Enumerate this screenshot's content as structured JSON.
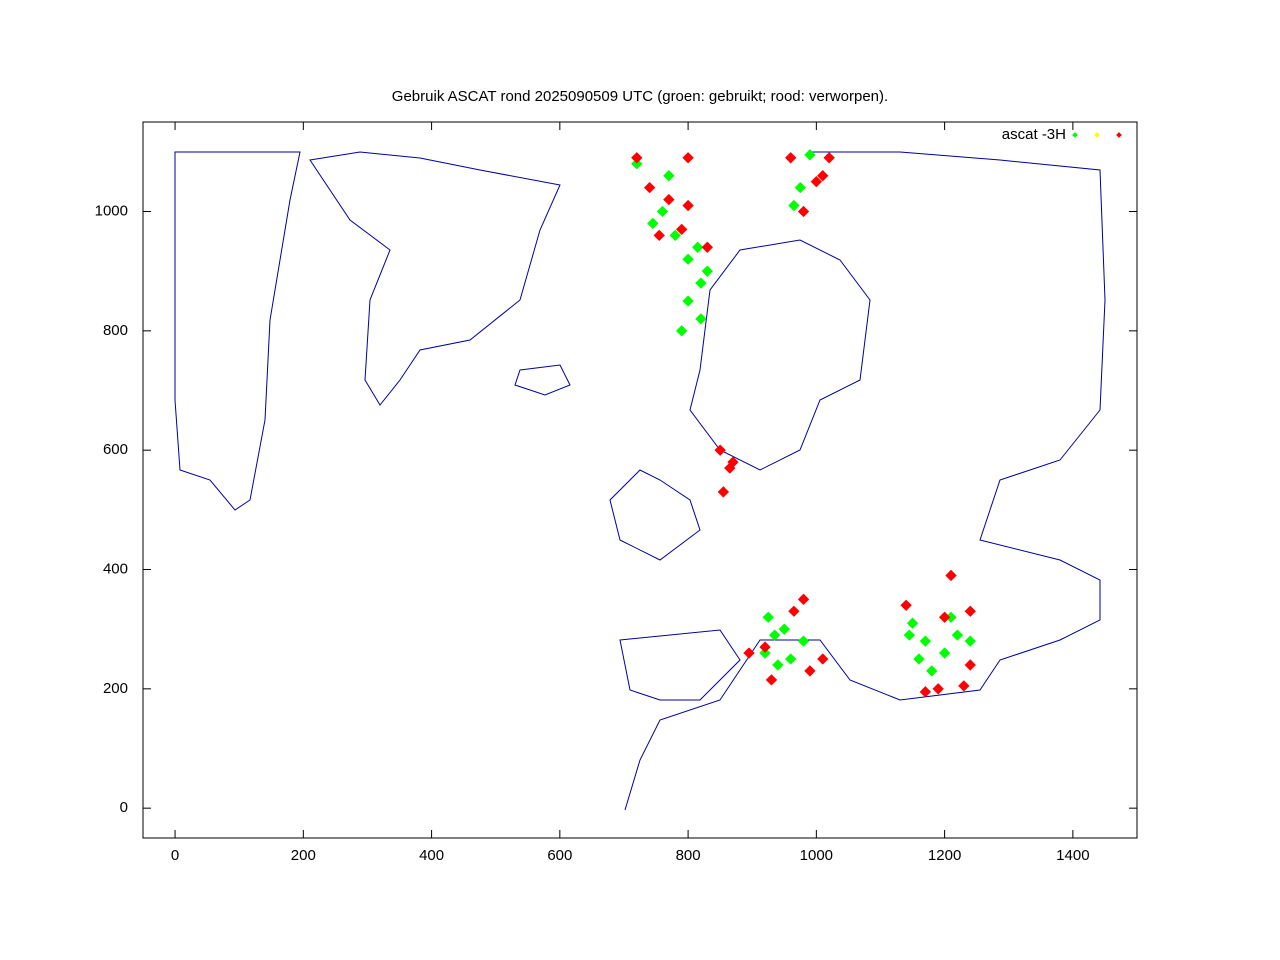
{
  "chart_data": {
    "type": "scatter",
    "title": "Gebruik ASCAT rond 2025090509 UTC (groen: gebruikt; rood: verworpen).",
    "legend_label": "ascat -3H",
    "xlim": [
      -50,
      1500
    ],
    "ylim": [
      -50,
      1150
    ],
    "xticks": [
      0,
      200,
      400,
      600,
      800,
      1000,
      1200,
      1400
    ],
    "yticks": [
      0,
      200,
      400,
      600,
      800,
      1000
    ],
    "series": [
      {
        "color": "#00ff00",
        "x": [
          760,
          780,
          800,
          820,
          800,
          790,
          820,
          830,
          770,
          720,
          745,
          815,
          990,
          975,
          965,
          920,
          940,
          935,
          960,
          980,
          950,
          925,
          1150,
          1170,
          1200,
          1220,
          1180,
          1160,
          1240,
          1210,
          1145
        ],
        "y": [
          1000,
          960,
          920,
          880,
          850,
          800,
          820,
          900,
          1060,
          1080,
          980,
          940,
          1095,
          1040,
          1010,
          260,
          240,
          290,
          250,
          280,
          300,
          320,
          310,
          280,
          260,
          290,
          230,
          250,
          280,
          320,
          290
        ]
      },
      {
        "color": "#ffff00",
        "x": [],
        "y": []
      },
      {
        "color": "#ff0000",
        "x": [
          740,
          770,
          800,
          790,
          755,
          830,
          720,
          800,
          960,
          1020,
          1000,
          980,
          1010,
          930,
          990,
          1010,
          965,
          980,
          920,
          895,
          1140,
          1200,
          1240,
          1190,
          1230,
          1170,
          855,
          865,
          850,
          870,
          1210,
          1240
        ],
        "y": [
          1040,
          1020,
          1010,
          970,
          960,
          940,
          1090,
          1090,
          1090,
          1090,
          1050,
          1000,
          1060,
          215,
          230,
          250,
          330,
          350,
          270,
          260,
          340,
          320,
          240,
          200,
          205,
          195,
          530,
          570,
          600,
          580,
          390,
          330
        ]
      }
    ]
  }
}
